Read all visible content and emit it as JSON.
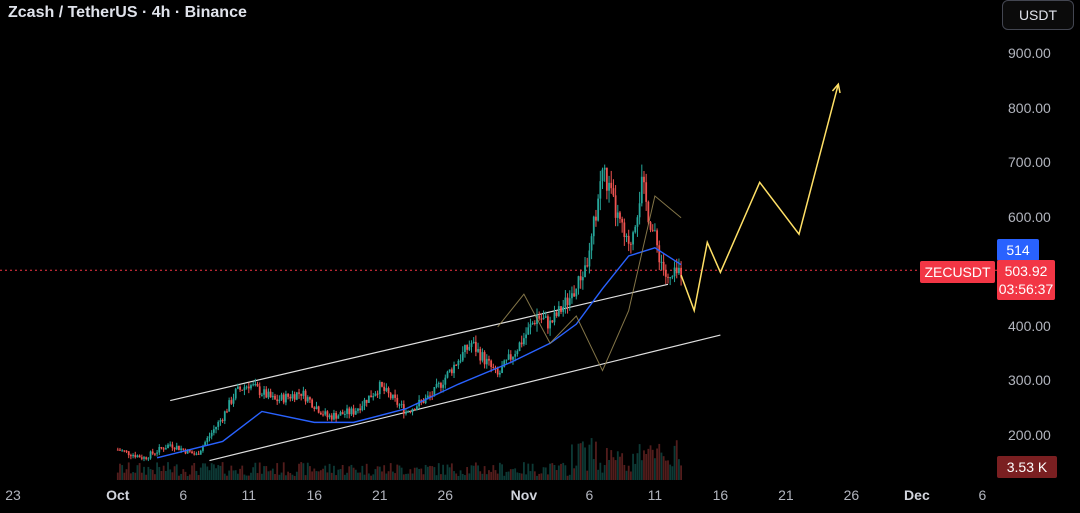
{
  "header": {
    "title": "Zcash / TetherUS · 4h · Binance"
  },
  "currency_button": "USDT",
  "badges": {
    "ma_value": "514",
    "symbol": "ZECUSDT",
    "last_price": "503.92",
    "countdown": "03:56:37",
    "volume": "3.53 K"
  },
  "colors": {
    "background": "#000000",
    "up": "#26a69a",
    "down": "#ef5350",
    "ma_line": "#2962ff",
    "channel": "#e0e0e0",
    "projection": "#ffe066",
    "price_line": "#f23645"
  },
  "chart_data": {
    "type": "candlestick",
    "title": "Zcash / TetherUS · 4h · Binance",
    "interval": "4h",
    "exchange": "Binance",
    "y_axis": {
      "ticks": [
        "900.00",
        "800.00",
        "700.00",
        "600.00",
        "500.00",
        "400.00",
        "300.00",
        "200.00"
      ],
      "range": [
        155,
        1000
      ],
      "position": "right"
    },
    "x_axis": {
      "ticks": [
        {
          "label": "23",
          "date": "2025-09-23"
        },
        {
          "label": "Oct",
          "date": "2025-10-01",
          "bold": true
        },
        {
          "label": "6",
          "date": "2025-10-06"
        },
        {
          "label": "11",
          "date": "2025-10-11"
        },
        {
          "label": "16",
          "date": "2025-10-16"
        },
        {
          "label": "21",
          "date": "2025-10-21"
        },
        {
          "label": "26",
          "date": "2025-10-26"
        },
        {
          "label": "Nov",
          "date": "2025-11-01",
          "bold": true
        },
        {
          "label": "6",
          "date": "2025-11-06"
        },
        {
          "label": "11",
          "date": "2025-11-11"
        },
        {
          "label": "16",
          "date": "2025-11-16"
        },
        {
          "label": "21",
          "date": "2025-11-21"
        },
        {
          "label": "26",
          "date": "2025-11-26"
        },
        {
          "label": "Dec",
          "date": "2025-12-01",
          "bold": true
        },
        {
          "label": "6",
          "date": "2025-12-06"
        }
      ]
    },
    "price_path": [
      {
        "date": "2025-10-01",
        "price": 175
      },
      {
        "date": "2025-10-03",
        "price": 160
      },
      {
        "date": "2025-10-05",
        "price": 185
      },
      {
        "date": "2025-10-07",
        "price": 165
      },
      {
        "date": "2025-10-09",
        "price": 235
      },
      {
        "date": "2025-10-10",
        "price": 280
      },
      {
        "date": "2025-10-11",
        "price": 295
      },
      {
        "date": "2025-10-13",
        "price": 265
      },
      {
        "date": "2025-10-15",
        "price": 280
      },
      {
        "date": "2025-10-17",
        "price": 235
      },
      {
        "date": "2025-10-19",
        "price": 245
      },
      {
        "date": "2025-10-21",
        "price": 290
      },
      {
        "date": "2025-10-23",
        "price": 245
      },
      {
        "date": "2025-10-25",
        "price": 275
      },
      {
        "date": "2025-10-27",
        "price": 340
      },
      {
        "date": "2025-10-28",
        "price": 370
      },
      {
        "date": "2025-10-30",
        "price": 310
      },
      {
        "date": "2025-11-01",
        "price": 380
      },
      {
        "date": "2025-11-02",
        "price": 420
      },
      {
        "date": "2025-11-03",
        "price": 405
      },
      {
        "date": "2025-11-05",
        "price": 470
      },
      {
        "date": "2025-11-06",
        "price": 530
      },
      {
        "date": "2025-11-07",
        "price": 690
      },
      {
        "date": "2025-11-08",
        "price": 610
      },
      {
        "date": "2025-11-09",
        "price": 540
      },
      {
        "date": "2025-11-10",
        "price": 660
      },
      {
        "date": "2025-11-11",
        "price": 560
      },
      {
        "date": "2025-11-12",
        "price": 480
      },
      {
        "date": "2025-11-13",
        "price": 504
      }
    ],
    "moving_average": [
      {
        "date": "2025-10-04",
        "value": 160
      },
      {
        "date": "2025-10-09",
        "value": 190
      },
      {
        "date": "2025-10-12",
        "value": 245
      },
      {
        "date": "2025-10-16",
        "value": 225
      },
      {
        "date": "2025-10-19",
        "value": 225
      },
      {
        "date": "2025-10-23",
        "value": 250
      },
      {
        "date": "2025-10-27",
        "value": 295
      },
      {
        "date": "2025-10-31",
        "value": 335
      },
      {
        "date": "2025-11-03",
        "value": 370
      },
      {
        "date": "2025-11-05",
        "value": 405
      },
      {
        "date": "2025-11-07",
        "value": 470
      },
      {
        "date": "2025-11-09",
        "value": 530
      },
      {
        "date": "2025-11-11",
        "value": 545
      },
      {
        "date": "2025-11-13",
        "value": 514
      }
    ],
    "channel_upper": [
      {
        "date": "2025-10-05",
        "price": 265
      },
      {
        "date": "2025-11-12",
        "price": 478
      }
    ],
    "channel_lower": [
      {
        "date": "2025-10-08",
        "price": 155
      },
      {
        "date": "2025-11-16",
        "price": 385
      }
    ],
    "projection": [
      {
        "date": "2025-11-13",
        "price": 495
      },
      {
        "date": "2025-11-14",
        "price": 430
      },
      {
        "date": "2025-11-15",
        "price": 555
      },
      {
        "date": "2025-11-16",
        "price": 500
      },
      {
        "date": "2025-11-19",
        "price": 665
      },
      {
        "date": "2025-11-22",
        "price": 570
      },
      {
        "date": "2025-11-25",
        "price": 845
      }
    ],
    "zigzag": [
      {
        "date": "2025-10-30",
        "price": 400
      },
      {
        "date": "2025-11-01",
        "price": 460
      },
      {
        "date": "2025-11-03",
        "price": 370
      },
      {
        "date": "2025-11-05",
        "price": 420
      },
      {
        "date": "2025-11-07",
        "price": 320
      },
      {
        "date": "2025-11-09",
        "price": 430
      },
      {
        "date": "2025-11-11",
        "price": 640
      },
      {
        "date": "2025-11-13",
        "price": 600
      }
    ],
    "last_price": 503.92,
    "ma_last": 514,
    "volume_last": "3.53 K",
    "grid": false
  }
}
